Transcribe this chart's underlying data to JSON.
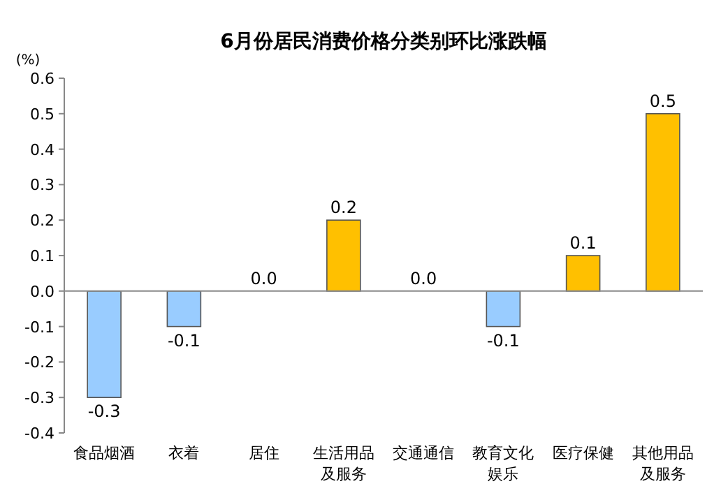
{
  "chart_data": {
    "type": "bar",
    "title": "6月份居民消费价格分类别环比涨跌幅",
    "ylabel": "(%)",
    "categories": [
      "食品烟酒",
      "衣着",
      "居住",
      "生活用品及服务",
      "交通通信",
      "教育文化娱乐",
      "医疗保健",
      "其他用品及服务"
    ],
    "values": [
      -0.3,
      -0.1,
      0.0,
      0.2,
      0.0,
      -0.1,
      0.1,
      0.5
    ],
    "value_labels": [
      "-0.3",
      "-0.1",
      "0.0",
      "0.2",
      "0.0",
      "-0.1",
      "0.1",
      "0.5"
    ],
    "colors": [
      "#99ccff",
      "#99ccff",
      "#99ccff",
      "#ffc000",
      "#99ccff",
      "#99ccff",
      "#ffc000",
      "#ffc000"
    ],
    "ylim": [
      -0.4,
      0.6
    ],
    "yticks": [
      {
        "value": -0.4,
        "label": "-0.4"
      },
      {
        "value": -0.3,
        "label": "-0.3"
      },
      {
        "value": -0.2,
        "label": "-0.2"
      },
      {
        "value": -0.1,
        "label": "-0.1"
      },
      {
        "value": 0,
        "label": "0.0"
      },
      {
        "value": 0.1,
        "label": "0.1"
      },
      {
        "value": 0.2,
        "label": "0.2"
      },
      {
        "value": 0.3,
        "label": "0.3"
      },
      {
        "value": 0.4,
        "label": "0.4"
      },
      {
        "value": 0.5,
        "label": "0.5"
      },
      {
        "value": 0.6,
        "label": "0.6"
      }
    ],
    "legend": false
  }
}
